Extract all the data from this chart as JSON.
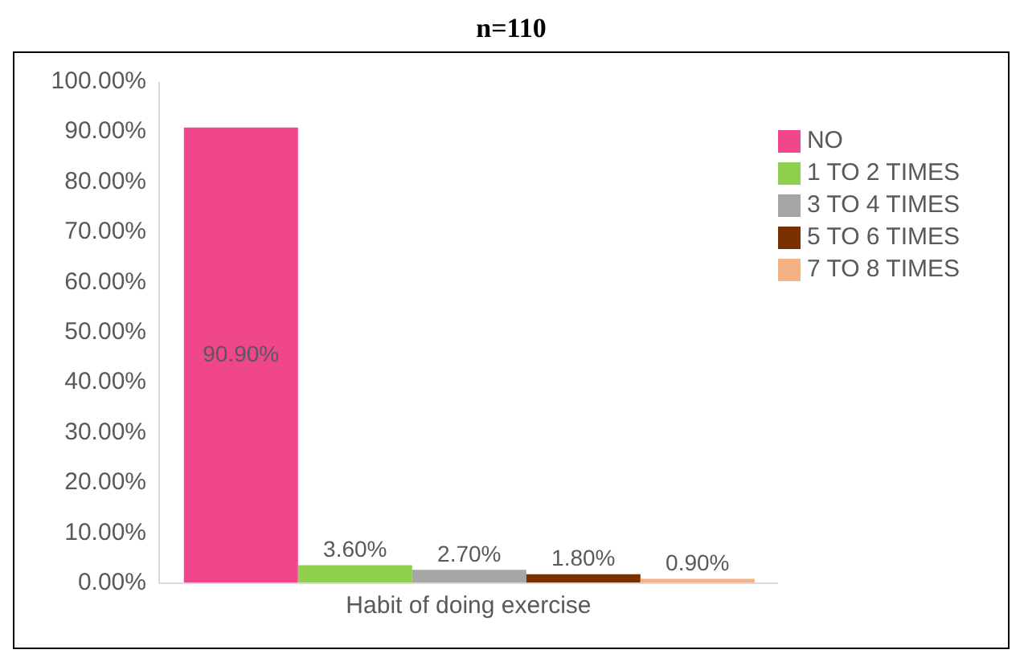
{
  "chart_data": {
    "type": "bar",
    "title": "n=110",
    "categories": [
      "Habit of doing exercise"
    ],
    "series": [
      {
        "name": "NO",
        "color": "#f0468c",
        "values": [
          90.9
        ],
        "value_labels": [
          "90.90%"
        ]
      },
      {
        "name": "1 TO 2 TIMES",
        "color": "#8fd14f",
        "values": [
          3.6
        ],
        "value_labels": [
          "3.60%"
        ]
      },
      {
        "name": "3 TO 4 TIMES",
        "color": "#a6a6a6",
        "values": [
          2.7
        ],
        "value_labels": [
          "2.70%"
        ]
      },
      {
        "name": "5 TO 6 TIMES",
        "color": "#7b3000",
        "values": [
          1.8
        ],
        "value_labels": [
          "1.80%"
        ]
      },
      {
        "name": "7 TO 8 TIMES",
        "color": "#f4b183",
        "values": [
          0.9
        ],
        "value_labels": [
          "0.90%"
        ]
      }
    ],
    "ylim": [
      0,
      100
    ],
    "yticks": [
      {
        "value": 0,
        "label": "0.00%"
      },
      {
        "value": 10,
        "label": "10.00%"
      },
      {
        "value": 20,
        "label": "20.00%"
      },
      {
        "value": 30,
        "label": "30.00%"
      },
      {
        "value": 40,
        "label": "40.00%"
      },
      {
        "value": 50,
        "label": "50.00%"
      },
      {
        "value": 60,
        "label": "60.00%"
      },
      {
        "value": 70,
        "label": "70.00%"
      },
      {
        "value": 80,
        "label": "80.00%"
      },
      {
        "value": 90,
        "label": "90.00%"
      },
      {
        "value": 100,
        "label": "100.00%"
      }
    ],
    "grid": false,
    "legend": "top right"
  }
}
